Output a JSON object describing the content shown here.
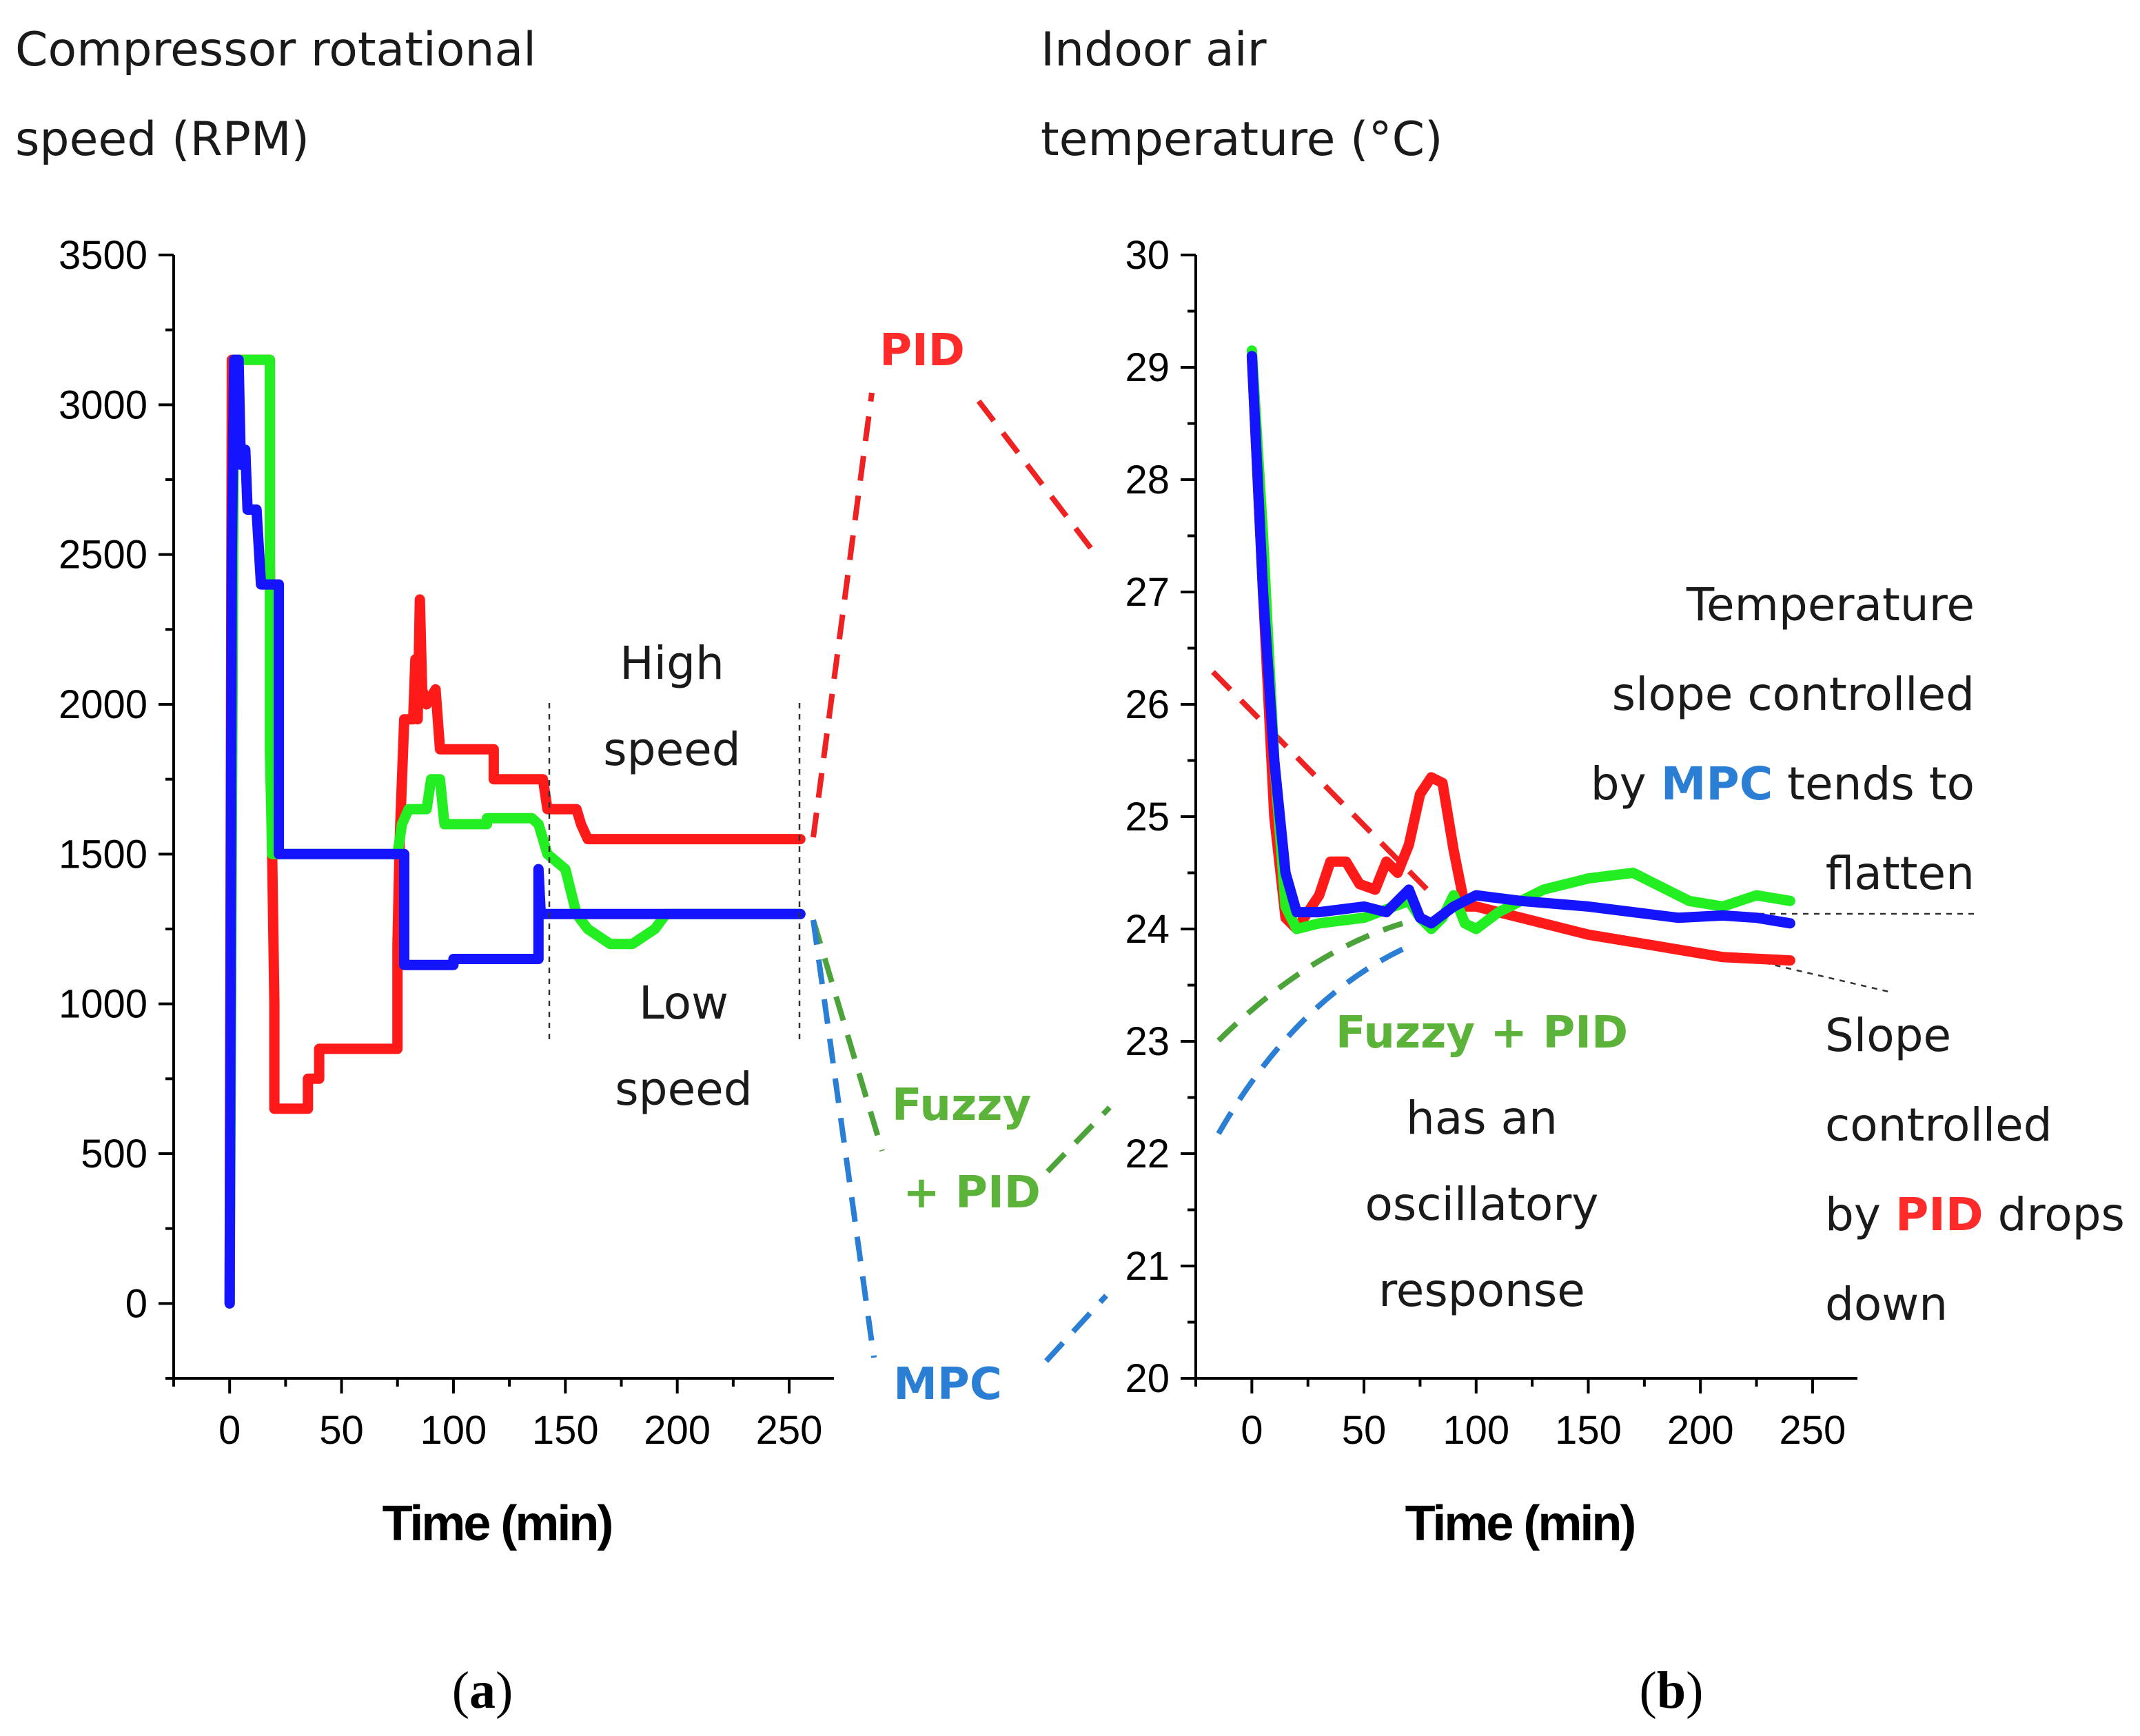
{
  "panel_a": {
    "ylabel_lines": [
      "Compressor rotational",
      "speed (RPM)"
    ],
    "annotations": {
      "high_speed": [
        "High",
        "speed"
      ],
      "low_speed": [
        "Low",
        "speed"
      ]
    },
    "panel_label": {
      "open": "(",
      "letter": "a",
      "close": ")"
    }
  },
  "panel_b": {
    "ylabel_lines": [
      "Indoor air",
      "temperature (°C)"
    ],
    "annotations": {
      "mpc_note": {
        "line1": "Temperature",
        "line2": "slope controlled",
        "line3_pre": "by ",
        "line3_key": "MPC",
        "line3_post": " tends to",
        "line4": "flatten"
      },
      "pid_note": {
        "line1": "Slope",
        "line2": "controlled",
        "line3_pre": "by ",
        "line3_key": "PID",
        "line3_post": " drops",
        "line4": "down"
      },
      "fuzzy_note": {
        "title": "Fuzzy + PID",
        "line1": "has an",
        "line2": "oscillatory",
        "line3": "response"
      }
    },
    "panel_label": {
      "open": "(",
      "letter": "b",
      "close": ")"
    }
  },
  "legend": {
    "pid": "PID",
    "fuzzy_line1": "Fuzzy",
    "fuzzy_line2": "+ PID",
    "mpc": "MPC"
  },
  "colors": {
    "pid": "#ff1a1a",
    "fuzzy_pid": "#22ee22",
    "mpc": "#1414ff",
    "pid_label": "#ff2a2a",
    "fuzzy_label": "#5cb33a",
    "mpc_label": "#2a7fd4"
  },
  "chart_data": [
    {
      "type": "line",
      "title": "",
      "xlabel": "Time (min)",
      "ylabel": "Compressor rotational speed (RPM)",
      "xlim": [
        -25,
        270
      ],
      "ylim": [
        -250,
        3500
      ],
      "xticks": [
        0,
        50,
        100,
        150,
        200,
        250
      ],
      "yticks": [
        0,
        500,
        1000,
        1500,
        2000,
        2500,
        3000,
        3500
      ],
      "series": [
        {
          "name": "PID",
          "color": "#ff1a1a",
          "points": [
            [
              0,
              0
            ],
            [
              1,
              3150
            ],
            [
              18,
              3150
            ],
            [
              18,
              2500
            ],
            [
              19,
              1500
            ],
            [
              20,
              1000
            ],
            [
              20,
              650
            ],
            [
              35,
              650
            ],
            [
              35,
              750
            ],
            [
              40,
              750
            ],
            [
              40,
              850
            ],
            [
              75,
              850
            ],
            [
              75,
              1200
            ],
            [
              76,
              1550
            ],
            [
              78,
              1950
            ],
            [
              82,
              1950
            ],
            [
              83,
              2150
            ],
            [
              84,
              1950
            ],
            [
              85,
              2350
            ],
            [
              86,
              2050
            ],
            [
              88,
              2000
            ],
            [
              92,
              2050
            ],
            [
              94,
              1850
            ],
            [
              118,
              1850
            ],
            [
              118,
              1750
            ],
            [
              140,
              1750
            ],
            [
              142,
              1650
            ],
            [
              155,
              1650
            ],
            [
              157,
              1600
            ],
            [
              160,
              1550
            ],
            [
              255,
              1550
            ]
          ]
        },
        {
          "name": "Fuzzy + PID",
          "color": "#22ee22",
          "points": [
            [
              0,
              0
            ],
            [
              2,
              3150
            ],
            [
              8,
              3150
            ],
            [
              18,
              3150
            ],
            [
              18,
              1850
            ],
            [
              19,
              1500
            ],
            [
              20,
              1500
            ],
            [
              75,
              1500
            ],
            [
              77,
              1600
            ],
            [
              80,
              1650
            ],
            [
              88,
              1650
            ],
            [
              90,
              1750
            ],
            [
              94,
              1750
            ],
            [
              96,
              1600
            ],
            [
              115,
              1600
            ],
            [
              115,
              1620
            ],
            [
              135,
              1620
            ],
            [
              138,
              1600
            ],
            [
              142,
              1500
            ],
            [
              150,
              1450
            ],
            [
              155,
              1300
            ],
            [
              160,
              1250
            ],
            [
              170,
              1200
            ],
            [
              180,
              1200
            ],
            [
              190,
              1250
            ],
            [
              195,
              1300
            ],
            [
              255,
              1300
            ]
          ]
        },
        {
          "name": "MPC",
          "color": "#1414ff",
          "points": [
            [
              0,
              0
            ],
            [
              1,
              2500
            ],
            [
              2,
              3150
            ],
            [
              4,
              3150
            ],
            [
              5,
              2800
            ],
            [
              7,
              2850
            ],
            [
              8,
              2650
            ],
            [
              12,
              2650
            ],
            [
              14,
              2400
            ],
            [
              22,
              2400
            ],
            [
              22,
              1500
            ],
            [
              78,
              1500
            ],
            [
              78,
              1130
            ],
            [
              100,
              1130
            ],
            [
              100,
              1150
            ],
            [
              138,
              1150
            ],
            [
              138,
              1450
            ],
            [
              139,
              1300
            ],
            [
              255,
              1300
            ]
          ]
        }
      ]
    },
    {
      "type": "line",
      "title": "",
      "xlabel": "Time (min)",
      "ylabel": "Indoor air temperature (°C)",
      "xlim": [
        -25,
        270
      ],
      "ylim": [
        20,
        30
      ],
      "xticks": [
        0,
        50,
        100,
        150,
        200,
        250
      ],
      "yticks": [
        20,
        21,
        22,
        23,
        24,
        25,
        26,
        27,
        28,
        29,
        30
      ],
      "series": [
        {
          "name": "PID",
          "color": "#ff1a1a",
          "points": [
            [
              0,
              29.1
            ],
            [
              5,
              27.0
            ],
            [
              10,
              25.0
            ],
            [
              15,
              24.1
            ],
            [
              20,
              24.0
            ],
            [
              25,
              24.15
            ],
            [
              30,
              24.3
            ],
            [
              35,
              24.6
            ],
            [
              42,
              24.6
            ],
            [
              48,
              24.4
            ],
            [
              55,
              24.35
            ],
            [
              60,
              24.6
            ],
            [
              65,
              24.5
            ],
            [
              70,
              24.75
            ],
            [
              75,
              25.2
            ],
            [
              80,
              25.35
            ],
            [
              85,
              25.3
            ],
            [
              90,
              24.7
            ],
            [
              95,
              24.2
            ],
            [
              100,
              24.2
            ],
            [
              120,
              24.1
            ],
            [
              150,
              23.95
            ],
            [
              180,
              23.85
            ],
            [
              210,
              23.75
            ],
            [
              240,
              23.72
            ]
          ]
        },
        {
          "name": "Fuzzy + PID",
          "color": "#22ee22",
          "points": [
            [
              0,
              29.15
            ],
            [
              5,
              27.5
            ],
            [
              10,
              25.5
            ],
            [
              15,
              24.2
            ],
            [
              20,
              24.0
            ],
            [
              30,
              24.05
            ],
            [
              50,
              24.1
            ],
            [
              70,
              24.25
            ],
            [
              75,
              24.1
            ],
            [
              80,
              24.0
            ],
            [
              85,
              24.1
            ],
            [
              90,
              24.3
            ],
            [
              95,
              24.05
            ],
            [
              100,
              24.0
            ],
            [
              110,
              24.15
            ],
            [
              130,
              24.35
            ],
            [
              150,
              24.45
            ],
            [
              170,
              24.5
            ],
            [
              180,
              24.4
            ],
            [
              195,
              24.25
            ],
            [
              210,
              24.2
            ],
            [
              225,
              24.3
            ],
            [
              240,
              24.25
            ]
          ]
        },
        {
          "name": "MPC",
          "color": "#1414ff",
          "points": [
            [
              0,
              29.1
            ],
            [
              5,
              27.0
            ],
            [
              10,
              25.5
            ],
            [
              15,
              24.5
            ],
            [
              20,
              24.15
            ],
            [
              30,
              24.15
            ],
            [
              50,
              24.2
            ],
            [
              60,
              24.15
            ],
            [
              70,
              24.35
            ],
            [
              75,
              24.1
            ],
            [
              80,
              24.05
            ],
            [
              90,
              24.2
            ],
            [
              100,
              24.3
            ],
            [
              120,
              24.25
            ],
            [
              150,
              24.2
            ],
            [
              170,
              24.15
            ],
            [
              190,
              24.1
            ],
            [
              210,
              24.12
            ],
            [
              225,
              24.1
            ],
            [
              240,
              24.05
            ]
          ]
        }
      ]
    }
  ]
}
